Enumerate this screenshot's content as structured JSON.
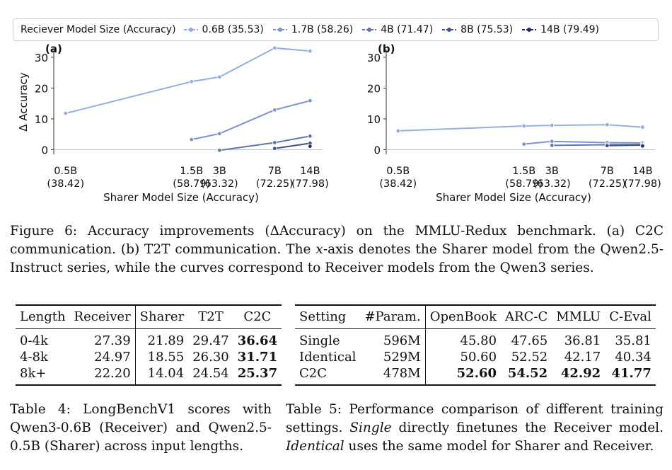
{
  "legend": {
    "title": "Reciever Model Size (Accuracy)",
    "entries": [
      {
        "label": "0.6B (35.53)",
        "color": "#93aee0"
      },
      {
        "label": "1.7B (58.26)",
        "color": "#7b95cc"
      },
      {
        "label": "4B (71.47)",
        "color": "#5e77ad"
      },
      {
        "label": "8B (75.53)",
        "color": "#3f5389"
      },
      {
        "label": "14B (79.49)",
        "color": "#23305e"
      }
    ]
  },
  "chart_data": [
    {
      "type": "line",
      "panel_label": "(a)",
      "ylabel": "Δ Accuracy",
      "xlabel": "Sharer Model Size (Accuracy)",
      "x_ticks": [
        {
          "x": 38.42,
          "line1": "0.5B",
          "line2": "(38.42)"
        },
        {
          "x": 58.79,
          "line1": "1.5B",
          "line2": "(58.79)"
        },
        {
          "x": 63.32,
          "line1": "3B",
          "line2": "(63.32)"
        },
        {
          "x": 72.25,
          "line1": "7B",
          "line2": "(72.25)"
        },
        {
          "x": 77.98,
          "line1": "14B",
          "line2": "(77.98)"
        }
      ],
      "xlim": [
        36.5,
        80.0
      ],
      "ylim": [
        -1.5,
        32.5
      ],
      "y_ticks": [
        0,
        10,
        20,
        30
      ],
      "zero_line": true,
      "series": [
        {
          "name": "0.6B (35.53)",
          "x": [
            38.42,
            58.79,
            63.32,
            72.25,
            77.98
          ],
          "y": [
            11.8,
            22.1,
            23.6,
            33.0,
            32.0
          ]
        },
        {
          "name": "1.7B (58.26)",
          "x": [
            58.79,
            63.32,
            72.25,
            77.98
          ],
          "y": [
            3.3,
            5.2,
            12.9,
            15.9
          ]
        },
        {
          "name": "4B (71.47)",
          "x": [
            63.32,
            72.25,
            77.98
          ],
          "y": [
            -0.2,
            2.3,
            4.4
          ]
        },
        {
          "name": "8B (75.53)",
          "x": [
            72.25,
            77.98
          ],
          "y": [
            0.4,
            2.1
          ]
        },
        {
          "name": "14B (79.49)",
          "x": [
            77.98
          ],
          "y": [
            1.1
          ]
        }
      ]
    },
    {
      "type": "line",
      "panel_label": "(b)",
      "ylabel": "",
      "xlabel": "Sharer Model Size (Accuracy)",
      "x_ticks": [
        {
          "x": 38.42,
          "line1": "0.5B",
          "line2": "(38.42)"
        },
        {
          "x": 58.79,
          "line1": "1.5B",
          "line2": "(58.79)"
        },
        {
          "x": 63.32,
          "line1": "3B",
          "line2": "(63.32)"
        },
        {
          "x": 72.25,
          "line1": "7B",
          "line2": "(72.25)"
        },
        {
          "x": 77.98,
          "line1": "14B",
          "line2": "(77.98)"
        }
      ],
      "xlim": [
        36.5,
        80.0
      ],
      "ylim": [
        -1.5,
        32.5
      ],
      "y_ticks": [
        0,
        10,
        20,
        30
      ],
      "zero_line": true,
      "series": [
        {
          "name": "0.6B (35.53)",
          "x": [
            38.42,
            58.79,
            63.32,
            72.25,
            77.98
          ],
          "y": [
            6.1,
            7.7,
            7.9,
            8.1,
            7.3
          ]
        },
        {
          "name": "1.7B (58.26)",
          "x": [
            58.79,
            63.32,
            72.25,
            77.98
          ],
          "y": [
            1.8,
            2.7,
            2.3,
            2.2
          ]
        },
        {
          "name": "4B (71.47)",
          "x": [
            63.32,
            72.25,
            77.98
          ],
          "y": [
            1.4,
            1.6,
            1.7
          ]
        },
        {
          "name": "8B (75.53)",
          "x": [
            72.25,
            77.98
          ],
          "y": [
            1.3,
            1.5
          ]
        },
        {
          "name": "14B (79.49)",
          "x": [
            77.98
          ],
          "y": [
            1.2
          ]
        }
      ]
    }
  ],
  "figure_caption": {
    "text_1": "Figure 6: Accuracy improvements (",
    "symbol": "ΔAccuracy",
    "text_2": ") on the MMLU-Redux benchmark. (a) C2C communication. (b) T2T communication. The ",
    "x_var": "x",
    "text_3": "-axis denotes the Sharer model from the Qwen2.5-Instruct series, while the curves correspond to Receiver models from the Qwen3 series."
  },
  "table4": {
    "headers": [
      "Length",
      "Receiver",
      "Sharer",
      "T2T",
      "C2C"
    ],
    "rows": [
      [
        "0-4k",
        "27.39",
        "21.89",
        "29.47",
        "36.64"
      ],
      [
        "4-8k",
        "24.97",
        "18.55",
        "26.30",
        "31.71"
      ],
      [
        "8k+",
        "22.20",
        "14.04",
        "24.54",
        "25.37"
      ]
    ],
    "caption": "Table 4: LongBenchV1 scores with Qwen3-0.6B (Receiver) and Qwen2.5-0.5B (Sharer) across input lengths."
  },
  "table5": {
    "headers": [
      "Setting",
      "#Param.",
      "OpenBook",
      "ARC-C",
      "MMLU",
      "C-Eval"
    ],
    "rows": [
      [
        "Single",
        "596M",
        "45.80",
        "47.65",
        "36.81",
        "35.81"
      ],
      [
        "Identical",
        "529M",
        "50.60",
        "52.52",
        "42.17",
        "40.34"
      ],
      [
        "C2C",
        "478M",
        "52.60",
        "54.52",
        "42.92",
        "41.77"
      ]
    ],
    "caption": {
      "part1": "Table 5: Performance comparison of different training settings. ",
      "single": "Single",
      "part2": " directly finetunes the Receiver model. ",
      "identical": "Identical",
      "part3": " uses the same model for Sharer and Receiver."
    }
  }
}
